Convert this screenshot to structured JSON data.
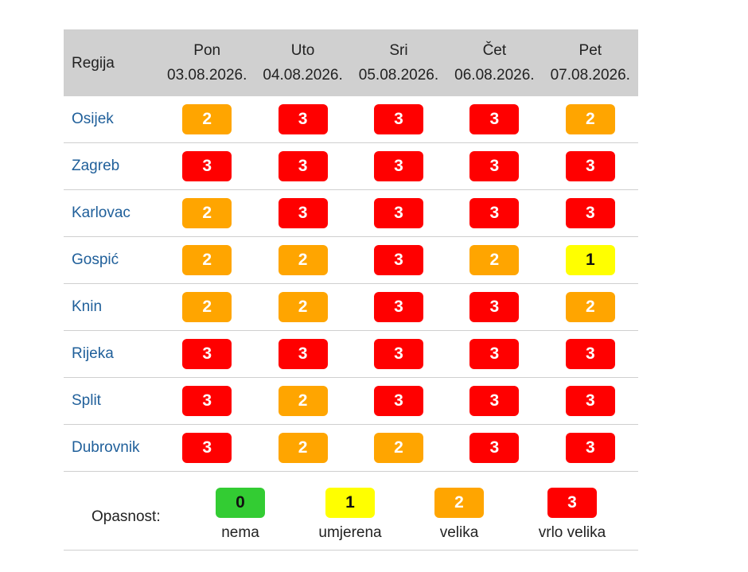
{
  "header": {
    "region_label": "Regija",
    "days": [
      {
        "name": "Pon",
        "date": "03.08.2026."
      },
      {
        "name": "Uto",
        "date": "04.08.2026."
      },
      {
        "name": "Sri",
        "date": "05.08.2026."
      },
      {
        "name": "Čet",
        "date": "06.08.2026."
      },
      {
        "name": "Pet",
        "date": "07.08.2026."
      }
    ]
  },
  "rows": [
    {
      "region": "Osijek",
      "levels": [
        "2",
        "3",
        "3",
        "3",
        "2"
      ]
    },
    {
      "region": "Zagreb",
      "levels": [
        "3",
        "3",
        "3",
        "3",
        "3"
      ]
    },
    {
      "region": "Karlovac",
      "levels": [
        "2",
        "3",
        "3",
        "3",
        "3"
      ]
    },
    {
      "region": "Gospić",
      "levels": [
        "2",
        "2",
        "3",
        "2",
        "1"
      ]
    },
    {
      "region": "Knin",
      "levels": [
        "2",
        "2",
        "3",
        "3",
        "2"
      ]
    },
    {
      "region": "Rijeka",
      "levels": [
        "3",
        "3",
        "3",
        "3",
        "3"
      ]
    },
    {
      "region": "Split",
      "levels": [
        "3",
        "2",
        "3",
        "3",
        "3"
      ]
    },
    {
      "region": "Dubrovnik",
      "levels": [
        "3",
        "2",
        "2",
        "3",
        "3"
      ]
    }
  ],
  "legend": {
    "label": "Opasnost:",
    "items": [
      {
        "value": "0",
        "text": "nema"
      },
      {
        "value": "1",
        "text": "umjerena"
      },
      {
        "value": "2",
        "text": "velika"
      },
      {
        "value": "3",
        "text": "vrlo velika"
      }
    ]
  },
  "colors": {
    "level_0": "#33cc33",
    "level_1": "#ffff00",
    "level_2": "#ffa500",
    "level_3": "#ff0000",
    "region_link": "#1f5f9a",
    "header_bg": "#d0d0d0"
  }
}
